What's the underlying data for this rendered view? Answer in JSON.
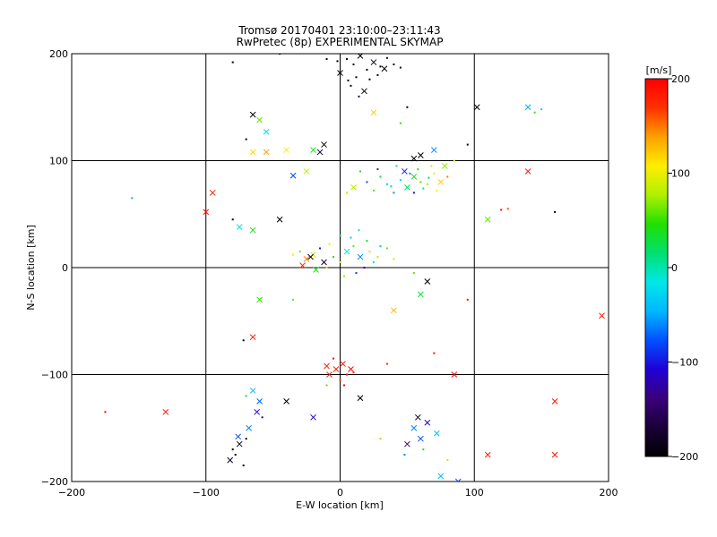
{
  "chart_data": {
    "type": "scatter",
    "title": "Tromsø 20170401 23:10:00–23:11:43",
    "subtitle": "RwPretec (8p) EXPERIMENTAL SKYMAP",
    "xlabel": "E-W location [km]",
    "ylabel": "N-S location [km]",
    "xlim": [
      -200,
      200
    ],
    "ylim": [
      -200,
      200
    ],
    "x_ticks": [
      -200,
      -100,
      0,
      100,
      200
    ],
    "y_ticks": [
      -200,
      -100,
      0,
      100,
      200
    ],
    "grid": true,
    "colorbar": {
      "label": "[m/s]",
      "min": -200,
      "max": 200,
      "ticks": [
        200,
        100,
        0,
        -100,
        -200
      ],
      "colors": [
        "#000000",
        "#1a0038",
        "#3a007a",
        "#2000d8",
        "#0050ff",
        "#00b8ff",
        "#00e8e8",
        "#00e070",
        "#20e000",
        "#b0f000",
        "#ffee00",
        "#ffa000",
        "#ff3000",
        "#ff0000"
      ]
    },
    "markers": {
      "small": "dot",
      "large": "x"
    },
    "points": [
      [
        5,
        195,
        -190,
        "d"
      ],
      [
        10,
        190,
        -180,
        "d"
      ],
      [
        15,
        198,
        -200,
        "x"
      ],
      [
        20,
        185,
        -195,
        "d"
      ],
      [
        25,
        192,
        -185,
        "x"
      ],
      [
        30,
        188,
        -200,
        "d"
      ],
      [
        35,
        196,
        -175,
        "d"
      ],
      [
        0,
        182,
        -190,
        "x"
      ],
      [
        12,
        178,
        -185,
        "d"
      ],
      [
        22,
        176,
        -200,
        "d"
      ],
      [
        8,
        170,
        -180,
        "d"
      ],
      [
        18,
        165,
        -190,
        "x"
      ],
      [
        28,
        180,
        -195,
        "d"
      ],
      [
        40,
        190,
        -185,
        "d"
      ],
      [
        -2,
        193,
        -200,
        "d"
      ],
      [
        14,
        160,
        -170,
        "d"
      ],
      [
        33,
        186,
        -200,
        "x"
      ],
      [
        6,
        175,
        -195,
        "d"
      ],
      [
        -10,
        195,
        -185,
        "d"
      ],
      [
        45,
        187,
        -180,
        "d"
      ],
      [
        60,
        80,
        60,
        "d"
      ],
      [
        55,
        85,
        40,
        "x"
      ],
      [
        65,
        78,
        80,
        "d"
      ],
      [
        70,
        88,
        100,
        "d"
      ],
      [
        50,
        75,
        20,
        "x"
      ],
      [
        45,
        82,
        -20,
        "d"
      ],
      [
        40,
        70,
        -60,
        "d"
      ],
      [
        58,
        92,
        50,
        "d"
      ],
      [
        75,
        80,
        120,
        "x"
      ],
      [
        35,
        78,
        -40,
        "d"
      ],
      [
        62,
        74,
        0,
        "d"
      ],
      [
        68,
        95,
        90,
        "d"
      ],
      [
        80,
        85,
        150,
        "d"
      ],
      [
        48,
        90,
        -100,
        "x"
      ],
      [
        30,
        85,
        30,
        "d"
      ],
      [
        25,
        72,
        60,
        "d"
      ],
      [
        20,
        80,
        -80,
        "d"
      ],
      [
        10,
        75,
        80,
        "x"
      ],
      [
        5,
        70,
        120,
        "d"
      ],
      [
        15,
        90,
        40,
        "d"
      ],
      [
        55,
        70,
        -120,
        "d"
      ],
      [
        72,
        72,
        100,
        "d"
      ],
      [
        78,
        95,
        70,
        "x"
      ],
      [
        42,
        95,
        20,
        "d"
      ],
      [
        52,
        88,
        -60,
        "d"
      ],
      [
        66,
        84,
        30,
        "d"
      ],
      [
        38,
        76,
        10,
        "d"
      ],
      [
        28,
        92,
        -90,
        "d"
      ],
      [
        60,
        105,
        -200,
        "x"
      ],
      [
        55,
        102,
        -190,
        "x"
      ],
      [
        70,
        110,
        -60,
        "x"
      ],
      [
        85,
        100,
        100,
        "d"
      ],
      [
        -5,
        10,
        40,
        "d"
      ],
      [
        0,
        5,
        80,
        "d"
      ],
      [
        5,
        15,
        -20,
        "x"
      ],
      [
        10,
        20,
        60,
        "d"
      ],
      [
        -10,
        0,
        120,
        "d"
      ],
      [
        15,
        10,
        -60,
        "x"
      ],
      [
        20,
        25,
        30,
        "d"
      ],
      [
        -15,
        18,
        -100,
        "d"
      ],
      [
        -20,
        12,
        90,
        "x"
      ],
      [
        25,
        5,
        0,
        "d"
      ],
      [
        30,
        20,
        -40,
        "d"
      ],
      [
        -25,
        8,
        150,
        "x"
      ],
      [
        -30,
        15,
        60,
        "d"
      ],
      [
        0,
        30,
        20,
        "d"
      ],
      [
        12,
        -5,
        -80,
        "d"
      ],
      [
        -8,
        22,
        100,
        "d"
      ],
      [
        18,
        0,
        -140,
        "d"
      ],
      [
        -18,
        -2,
        40,
        "x"
      ],
      [
        22,
        15,
        120,
        "d"
      ],
      [
        8,
        28,
        -30,
        "d"
      ],
      [
        -12,
        5,
        -170,
        "x"
      ],
      [
        28,
        10,
        80,
        "d"
      ],
      [
        35,
        18,
        60,
        "d"
      ],
      [
        -35,
        12,
        110,
        "d"
      ],
      [
        3,
        -8,
        70,
        "d"
      ],
      [
        -28,
        2,
        170,
        "x"
      ],
      [
        40,
        8,
        90,
        "d"
      ],
      [
        14,
        35,
        -10,
        "d"
      ],
      [
        -3,
        -95,
        180,
        "x"
      ],
      [
        2,
        -90,
        190,
        "x"
      ],
      [
        5,
        -100,
        200,
        "d"
      ],
      [
        -8,
        -100,
        180,
        "x"
      ],
      [
        0,
        -105,
        170,
        "d"
      ],
      [
        8,
        -95,
        190,
        "x"
      ],
      [
        -5,
        -85,
        200,
        "d"
      ],
      [
        10,
        -98,
        175,
        "d"
      ],
      [
        -10,
        -92,
        185,
        "x"
      ],
      [
        3,
        -110,
        195,
        "d"
      ],
      [
        -80,
        -170,
        -200,
        "d"
      ],
      [
        -75,
        -165,
        -190,
        "x"
      ],
      [
        -78,
        -175,
        -200,
        "d"
      ],
      [
        -70,
        -160,
        -195,
        "d"
      ],
      [
        -82,
        -180,
        -185,
        "x"
      ],
      [
        -72,
        -185,
        -200,
        "d"
      ],
      [
        -76,
        -158,
        -80,
        "x"
      ],
      [
        -68,
        -150,
        -60,
        "x"
      ],
      [
        -65,
        -115,
        -40,
        "x"
      ],
      [
        -70,
        -120,
        20,
        "d"
      ],
      [
        -60,
        -125,
        -70,
        "x"
      ],
      [
        -62,
        -135,
        -110,
        "x"
      ],
      [
        -58,
        -140,
        -120,
        "d"
      ],
      [
        60,
        -160,
        -80,
        "x"
      ],
      [
        65,
        -145,
        -110,
        "x"
      ],
      [
        55,
        -150,
        -60,
        "x"
      ],
      [
        62,
        -170,
        30,
        "d"
      ],
      [
        50,
        -165,
        -150,
        "x"
      ],
      [
        72,
        -155,
        -40,
        "x"
      ],
      [
        58,
        -140,
        -180,
        "x"
      ],
      [
        48,
        -175,
        -60,
        "d"
      ],
      [
        80,
        -180,
        120,
        "d"
      ],
      [
        75,
        -195,
        -40,
        "x"
      ],
      [
        88,
        -200,
        -80,
        "x"
      ],
      [
        110,
        -175,
        180,
        "x"
      ],
      [
        160,
        -175,
        190,
        "x"
      ],
      [
        160,
        -125,
        185,
        "x"
      ],
      [
        -130,
        -135,
        190,
        "x"
      ],
      [
        -175,
        -135,
        200,
        "d"
      ],
      [
        195,
        -45,
        180,
        "x"
      ],
      [
        -65,
        143,
        -200,
        "x"
      ],
      [
        -60,
        138,
        60,
        "x"
      ],
      [
        -70,
        120,
        -200,
        "d"
      ],
      [
        -65,
        108,
        120,
        "x"
      ],
      [
        -55,
        108,
        140,
        "x"
      ],
      [
        -40,
        110,
        110,
        "x"
      ],
      [
        -15,
        108,
        -180,
        "x"
      ],
      [
        -12,
        115,
        -200,
        "x"
      ],
      [
        -20,
        110,
        40,
        "x"
      ],
      [
        -25,
        90,
        80,
        "x"
      ],
      [
        -35,
        86,
        -80,
        "x"
      ],
      [
        -55,
        127,
        -20,
        "x"
      ],
      [
        25,
        145,
        120,
        "x"
      ],
      [
        45,
        135,
        50,
        "d"
      ],
      [
        50,
        150,
        -200,
        "d"
      ],
      [
        95,
        115,
        -200,
        "d"
      ],
      [
        102,
        150,
        -200,
        "x"
      ],
      [
        140,
        150,
        -50,
        "x"
      ],
      [
        145,
        145,
        50,
        "d"
      ],
      [
        150,
        148,
        -40,
        "d"
      ],
      [
        140,
        90,
        190,
        "x"
      ],
      [
        120,
        54,
        200,
        "d"
      ],
      [
        160,
        52,
        -200,
        "d"
      ],
      [
        -100,
        52,
        190,
        "x"
      ],
      [
        -95,
        70,
        170,
        "x"
      ],
      [
        -155,
        65,
        -50,
        "d"
      ],
      [
        -80,
        45,
        -200,
        "d"
      ],
      [
        -75,
        38,
        -20,
        "x"
      ],
      [
        -65,
        35,
        40,
        "x"
      ],
      [
        -45,
        45,
        -200,
        "x"
      ],
      [
        -22,
        10,
        -200,
        "x"
      ],
      [
        40,
        -40,
        130,
        "x"
      ],
      [
        60,
        -25,
        30,
        "x"
      ],
      [
        65,
        -13,
        -200,
        "x"
      ],
      [
        55,
        -5,
        60,
        "d"
      ],
      [
        95,
        -30,
        190,
        "d"
      ],
      [
        -60,
        -30,
        50,
        "x"
      ],
      [
        -35,
        -30,
        60,
        "d"
      ],
      [
        -72,
        -68,
        -200,
        "d"
      ],
      [
        -65,
        -65,
        190,
        "x"
      ],
      [
        -40,
        -125,
        -200,
        "x"
      ],
      [
        15,
        -122,
        -200,
        "x"
      ],
      [
        -20,
        -140,
        -120,
        "x"
      ],
      [
        30,
        -160,
        130,
        "d"
      ],
      [
        -10,
        -110,
        60,
        "d"
      ],
      [
        35,
        -90,
        180,
        "d"
      ],
      [
        70,
        -80,
        190,
        "d"
      ],
      [
        85,
        -100,
        200,
        "x"
      ],
      [
        110,
        45,
        60,
        "x"
      ],
      [
        125,
        55,
        160,
        "d"
      ],
      [
        -45,
        200,
        -200,
        "d"
      ],
      [
        -80,
        192,
        -200,
        "d"
      ]
    ]
  }
}
